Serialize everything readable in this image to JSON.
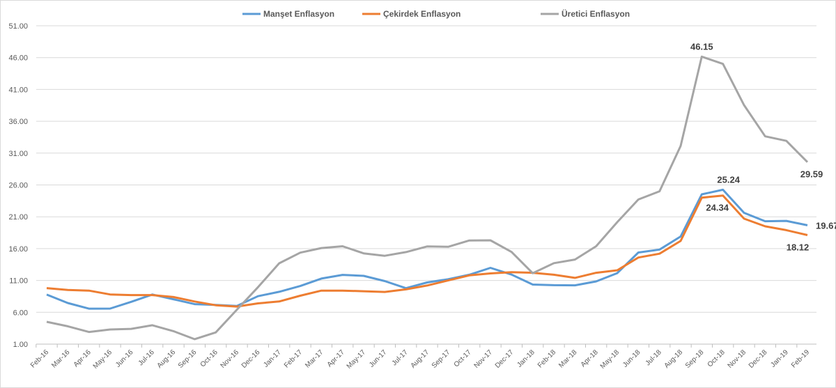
{
  "chart_data": {
    "type": "line",
    "title": "",
    "xlabel": "",
    "ylabel": "",
    "ylim": [
      1,
      51
    ],
    "yticks": [
      "1.00",
      "6.00",
      "11.00",
      "16.00",
      "21.00",
      "26.00",
      "31.00",
      "36.00",
      "41.00",
      "46.00",
      "51.00"
    ],
    "grid": true,
    "legend_position": "top",
    "categories": [
      "Feb-16",
      "Mar-16",
      "Apr-16",
      "May-16",
      "Jun-16",
      "Jul-16",
      "Aug-16",
      "Sep-16",
      "Oct-16",
      "Nov-16",
      "Dec-16",
      "Jan-17",
      "Feb-17",
      "Mar-17",
      "Apr-17",
      "May-17",
      "Jun-17",
      "Jul-17",
      "Aug-17",
      "Sep-17",
      "Oct-17",
      "Nov-17",
      "Dec-17",
      "Jan-18",
      "Feb-18",
      "Mar-18",
      "Apr-18",
      "May-18",
      "Jun-18",
      "Jul-18",
      "Aug-18",
      "Sep-18",
      "Oct-18",
      "Nov-18",
      "Dec-18",
      "Jan-19",
      "Feb-19"
    ],
    "series": [
      {
        "name": "Manşet Enflasyon",
        "color": "#5b9bd5",
        "values": [
          8.78,
          7.46,
          6.57,
          6.58,
          7.64,
          8.79,
          8.05,
          7.28,
          7.16,
          7.0,
          8.53,
          9.22,
          10.13,
          11.29,
          11.87,
          11.72,
          10.9,
          9.79,
          10.68,
          11.2,
          11.9,
          12.98,
          11.92,
          10.35,
          10.26,
          10.23,
          10.85,
          12.15,
          15.39,
          15.85,
          17.9,
          24.52,
          25.24,
          21.62,
          20.3,
          20.35,
          19.67
        ]
      },
      {
        "name": "Çekirdek Enflasyon",
        "color": "#ed7d31",
        "values": [
          9.8,
          9.5,
          9.4,
          8.8,
          8.7,
          8.7,
          8.4,
          7.7,
          7.1,
          6.9,
          7.4,
          7.7,
          8.6,
          9.4,
          9.4,
          9.3,
          9.2,
          9.6,
          10.2,
          11.0,
          11.8,
          12.1,
          12.3,
          12.2,
          11.9,
          11.4,
          12.2,
          12.6,
          14.6,
          15.2,
          17.2,
          24.0,
          24.34,
          20.7,
          19.5,
          18.9,
          18.12
        ]
      },
      {
        "name": "Üretici Enflasyon",
        "color": "#a5a5a5",
        "values": [
          4.5,
          3.8,
          2.9,
          3.3,
          3.4,
          3.96,
          3.03,
          1.78,
          2.84,
          6.41,
          9.94,
          13.69,
          15.36,
          16.09,
          16.37,
          15.26,
          14.87,
          15.45,
          16.34,
          16.28,
          17.28,
          17.3,
          15.47,
          12.14,
          13.71,
          14.28,
          16.37,
          20.16,
          23.71,
          25.0,
          32.13,
          46.15,
          45.01,
          38.54,
          33.64,
          32.93,
          29.59
        ]
      }
    ],
    "annotations": [
      {
        "text": "46.15",
        "series": 2,
        "category": "Sep-18",
        "placement": "above"
      },
      {
        "text": "25.24",
        "series": 0,
        "category": "Oct-18",
        "placement": "above"
      },
      {
        "text": "24.34",
        "series": 1,
        "category": "Oct-18",
        "placement": "below"
      },
      {
        "text": "29.59",
        "series": 2,
        "category": "Feb-19",
        "placement": "below"
      },
      {
        "text": "19.67",
        "series": 0,
        "category": "Feb-19",
        "placement": "right"
      },
      {
        "text": "18.12",
        "series": 1,
        "category": "Feb-19",
        "placement": "below"
      }
    ]
  }
}
